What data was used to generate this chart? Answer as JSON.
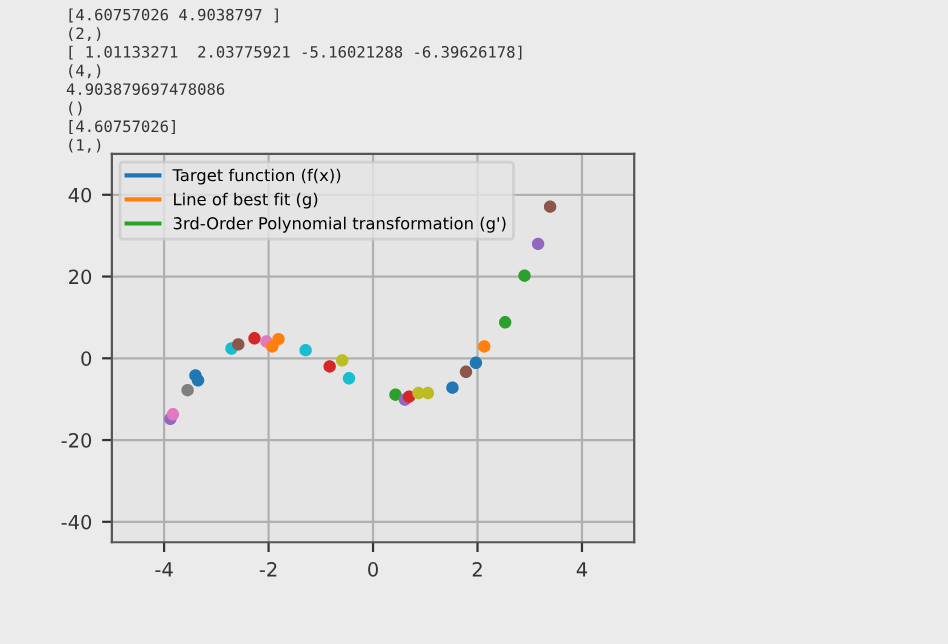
{
  "chart_data": {
    "type": "scatter",
    "annotations": [
      "[4.60757026 4.9038797 ]",
      "(2,)",
      "[ 1.01133271  2.03775921 -5.16021288 -6.39626178]",
      "(4,)",
      "4.903879697478086",
      "()",
      "[4.60757026]",
      "(1,)"
    ],
    "xlim": [
      -5,
      5
    ],
    "ylim": [
      -45,
      50
    ],
    "xticks": [
      -4,
      -2,
      0,
      2,
      4
    ],
    "yticks": [
      -40,
      -20,
      0,
      20,
      40
    ],
    "grid": true,
    "legend": "top left",
    "series": [
      {
        "name": "Target function (f(x))",
        "type": "line",
        "color": "#1f77b4"
      },
      {
        "name": "Line of best fit (g)",
        "type": "line",
        "color": "#ff7f0e"
      },
      {
        "name": "3rd-Order Polynomial transformation (g')",
        "type": "line",
        "color": "#2ca02c"
      },
      {
        "marker": "circle",
        "x": [
          -3.88,
          -3.83,
          -3.55,
          -3.4,
          -3.35,
          -2.71,
          -2.58,
          -2.27,
          -2.04,
          -1.93,
          -1.81,
          -1.29,
          -0.83,
          -0.59,
          -0.46,
          0.43,
          0.61,
          0.69,
          0.87,
          1.05,
          1.52,
          1.78,
          1.97,
          2.13,
          2.53,
          2.9,
          3.16,
          3.39
        ],
        "values": [
          -14.8,
          -13.7,
          -7.8,
          -4.2,
          -5.4,
          2.4,
          3.4,
          4.9,
          4.1,
          2.9,
          4.7,
          2.0,
          -2.0,
          -0.5,
          -4.9,
          -8.9,
          -10.1,
          -9.4,
          -8.5,
          -8.5,
          -7.2,
          -3.3,
          -1.1,
          2.9,
          8.8,
          20.2,
          28.0,
          37.1
        ],
        "colors": [
          "#9467bd",
          "#e377c2",
          "#7f7f7f",
          "#1f77b4",
          "#1f77b4",
          "#17becf",
          "#8c564b",
          "#d62728",
          "#e377c2",
          "#ff7f0e",
          "#ff7f0e",
          "#17becf",
          "#d62728",
          "#bcbd22",
          "#17becf",
          "#2ca02c",
          "#9467bd",
          "#d62728",
          "#bcbd22",
          "#bcbd22",
          "#1f77b4",
          "#8c564b",
          "#1f77b4",
          "#ff7f0e",
          "#2ca02c",
          "#2ca02c",
          "#9467bd",
          "#8c564b"
        ]
      }
    ]
  }
}
